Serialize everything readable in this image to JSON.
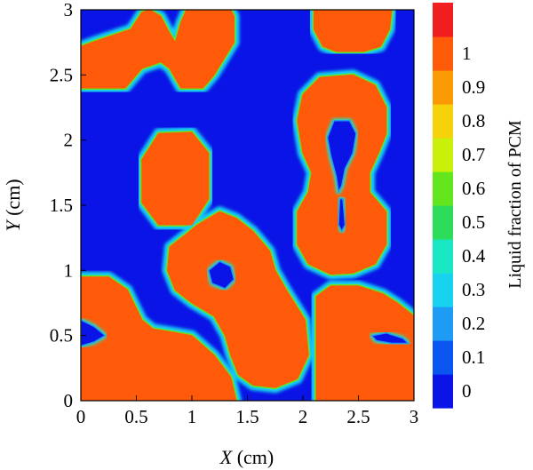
{
  "chart_data": {
    "type": "heatmap",
    "title": "",
    "xlabel": {
      "symbol": "X",
      "unit": " (cm)"
    },
    "ylabel": {
      "symbol": "Y",
      "unit": " (cm)"
    },
    "xlim": [
      0,
      3
    ],
    "ylim": [
      0,
      3
    ],
    "x_ticks": [
      {
        "value": 0,
        "label": "0"
      },
      {
        "value": 0.5,
        "label": "0.5"
      },
      {
        "value": 1,
        "label": "1"
      },
      {
        "value": 1.5,
        "label": "1.5"
      },
      {
        "value": 2,
        "label": "2"
      },
      {
        "value": 2.5,
        "label": "2.5"
      },
      {
        "value": 3,
        "label": "3"
      }
    ],
    "y_ticks": [
      {
        "value": 0,
        "label": "0"
      },
      {
        "value": 0.5,
        "label": "0.5"
      },
      {
        "value": 1,
        "label": "1"
      },
      {
        "value": 1.5,
        "label": "1.5"
      },
      {
        "value": 2,
        "label": "2"
      },
      {
        "value": 2.5,
        "label": "2.5"
      },
      {
        "value": 3,
        "label": "3"
      }
    ],
    "colorbar": {
      "label": "Liquid fraction of PCM",
      "range": [
        0,
        1
      ],
      "ticks": [
        {
          "value": 0,
          "label": "0"
        },
        {
          "value": 0.1,
          "label": "0.1"
        },
        {
          "value": 0.2,
          "label": "0.2"
        },
        {
          "value": 0.3,
          "label": "0.3"
        },
        {
          "value": 0.4,
          "label": "0.4"
        },
        {
          "value": 0.5,
          "label": "0.5"
        },
        {
          "value": 0.6,
          "label": "0.6"
        },
        {
          "value": 0.7,
          "label": "0.7"
        },
        {
          "value": 0.8,
          "label": "0.8"
        },
        {
          "value": 0.9,
          "label": "0.9"
        },
        {
          "value": 1,
          "label": "1"
        }
      ],
      "colors": [
        "#0a14e6",
        "#0a55f0",
        "#1e9bf5",
        "#19d2f0",
        "#19e6c3",
        "#2ddc5a",
        "#64e61e",
        "#c8f00a",
        "#f5d20a",
        "#fa9b05",
        "#ff5a0a",
        "#f01e1e"
      ]
    },
    "background_value": 0,
    "melted_value": 0.95,
    "melted_regions": [
      {
        "name": "top-left band",
        "polygon": [
          [
            0.0,
            2.6
          ],
          [
            0.0,
            2.72
          ],
          [
            0.2,
            2.78
          ],
          [
            0.45,
            2.85
          ],
          [
            0.55,
            2.98
          ],
          [
            0.62,
            3.0
          ],
          [
            0.72,
            2.95
          ],
          [
            0.8,
            2.82
          ],
          [
            0.85,
            2.75
          ],
          [
            0.9,
            2.9
          ],
          [
            0.95,
            3.0
          ],
          [
            1.35,
            3.0
          ],
          [
            1.38,
            2.95
          ],
          [
            1.38,
            2.75
          ],
          [
            1.2,
            2.5
          ],
          [
            1.1,
            2.4
          ],
          [
            0.9,
            2.4
          ],
          [
            0.8,
            2.55
          ],
          [
            0.72,
            2.6
          ],
          [
            0.55,
            2.55
          ],
          [
            0.4,
            2.4
          ],
          [
            0.0,
            2.4
          ]
        ]
      },
      {
        "name": "top-right cap",
        "polygon": [
          [
            2.1,
            3.0
          ],
          [
            2.8,
            3.0
          ],
          [
            2.78,
            2.85
          ],
          [
            2.7,
            2.72
          ],
          [
            2.55,
            2.68
          ],
          [
            2.3,
            2.68
          ],
          [
            2.18,
            2.72
          ],
          [
            2.1,
            2.85
          ]
        ]
      },
      {
        "name": "right figure-eight",
        "polygon": [
          [
            1.95,
            2.15
          ],
          [
            2.0,
            2.35
          ],
          [
            2.15,
            2.48
          ],
          [
            2.45,
            2.5
          ],
          [
            2.65,
            2.42
          ],
          [
            2.75,
            2.25
          ],
          [
            2.75,
            2.05
          ],
          [
            2.68,
            1.9
          ],
          [
            2.6,
            1.75
          ],
          [
            2.6,
            1.6
          ],
          [
            2.75,
            1.45
          ],
          [
            2.75,
            1.2
          ],
          [
            2.65,
            1.05
          ],
          [
            2.45,
            0.98
          ],
          [
            2.25,
            0.97
          ],
          [
            2.05,
            1.05
          ],
          [
            1.95,
            1.2
          ],
          [
            1.95,
            1.45
          ],
          [
            2.05,
            1.6
          ],
          [
            2.08,
            1.75
          ],
          [
            2.0,
            1.9
          ]
        ]
      },
      {
        "name": "upper-left octagon",
        "polygon": [
          [
            0.55,
            1.85
          ],
          [
            0.7,
            2.05
          ],
          [
            1.0,
            2.06
          ],
          [
            1.15,
            1.9
          ],
          [
            1.15,
            1.55
          ],
          [
            1.0,
            1.35
          ],
          [
            0.7,
            1.35
          ],
          [
            0.55,
            1.52
          ]
        ]
      },
      {
        "name": "central dumbbell",
        "polygon": [
          [
            0.8,
            1.18
          ],
          [
            0.95,
            1.28
          ],
          [
            1.05,
            1.35
          ],
          [
            1.25,
            1.45
          ],
          [
            1.4,
            1.4
          ],
          [
            1.55,
            1.3
          ],
          [
            1.7,
            1.15
          ],
          [
            1.75,
            1.0
          ],
          [
            1.85,
            0.85
          ],
          [
            2.02,
            0.62
          ],
          [
            2.05,
            0.35
          ],
          [
            1.95,
            0.17
          ],
          [
            1.75,
            0.1
          ],
          [
            1.55,
            0.12
          ],
          [
            1.42,
            0.2
          ],
          [
            1.35,
            0.35
          ],
          [
            1.3,
            0.5
          ],
          [
            1.2,
            0.65
          ],
          [
            1.0,
            0.75
          ],
          [
            0.85,
            0.85
          ],
          [
            0.78,
            1.0
          ]
        ]
      },
      {
        "name": "bottom-left blob",
        "polygon": [
          [
            0.0,
            0.95
          ],
          [
            0.25,
            0.95
          ],
          [
            0.42,
            0.85
          ],
          [
            0.55,
            0.62
          ],
          [
            0.65,
            0.55
          ],
          [
            0.8,
            0.53
          ],
          [
            1.0,
            0.5
          ],
          [
            1.2,
            0.35
          ],
          [
            1.35,
            0.18
          ],
          [
            1.4,
            0.0
          ],
          [
            0.0,
            0.0
          ]
        ]
      },
      {
        "name": "bottom-right blob",
        "polygon": [
          [
            2.12,
            0.8
          ],
          [
            2.25,
            0.88
          ],
          [
            2.5,
            0.88
          ],
          [
            2.72,
            0.82
          ],
          [
            2.85,
            0.75
          ],
          [
            3.0,
            0.65
          ],
          [
            3.0,
            0.0
          ],
          [
            2.12,
            0.0
          ]
        ]
      }
    ],
    "solid_islands": [
      {
        "name": "figure-eight upper hole",
        "polygon": [
          [
            2.28,
            2.15
          ],
          [
            2.42,
            2.15
          ],
          [
            2.48,
            2.05
          ],
          [
            2.45,
            1.9
          ],
          [
            2.38,
            1.78
          ],
          [
            2.35,
            1.65
          ],
          [
            2.32,
            1.6
          ],
          [
            2.3,
            1.72
          ],
          [
            2.25,
            1.88
          ],
          [
            2.22,
            2.02
          ]
        ]
      },
      {
        "name": "figure-eight lower slit",
        "polygon": [
          [
            2.33,
            1.55
          ],
          [
            2.36,
            1.55
          ],
          [
            2.38,
            1.35
          ],
          [
            2.35,
            1.3
          ],
          [
            2.32,
            1.35
          ]
        ]
      },
      {
        "name": "dumbbell hole",
        "polygon": [
          [
            1.15,
            1.0
          ],
          [
            1.25,
            1.07
          ],
          [
            1.35,
            1.03
          ],
          [
            1.38,
            0.93
          ],
          [
            1.3,
            0.86
          ],
          [
            1.18,
            0.9
          ]
        ]
      },
      {
        "name": "bottom-left hole",
        "polygon": [
          [
            0.0,
            0.62
          ],
          [
            0.12,
            0.57
          ],
          [
            0.22,
            0.5
          ],
          [
            0.12,
            0.45
          ],
          [
            0.0,
            0.42
          ]
        ]
      },
      {
        "name": "bottom-right hole",
        "polygon": [
          [
            2.62,
            0.5
          ],
          [
            2.75,
            0.52
          ],
          [
            2.9,
            0.48
          ],
          [
            2.95,
            0.44
          ],
          [
            2.8,
            0.44
          ],
          [
            2.66,
            0.46
          ]
        ]
      }
    ]
  }
}
